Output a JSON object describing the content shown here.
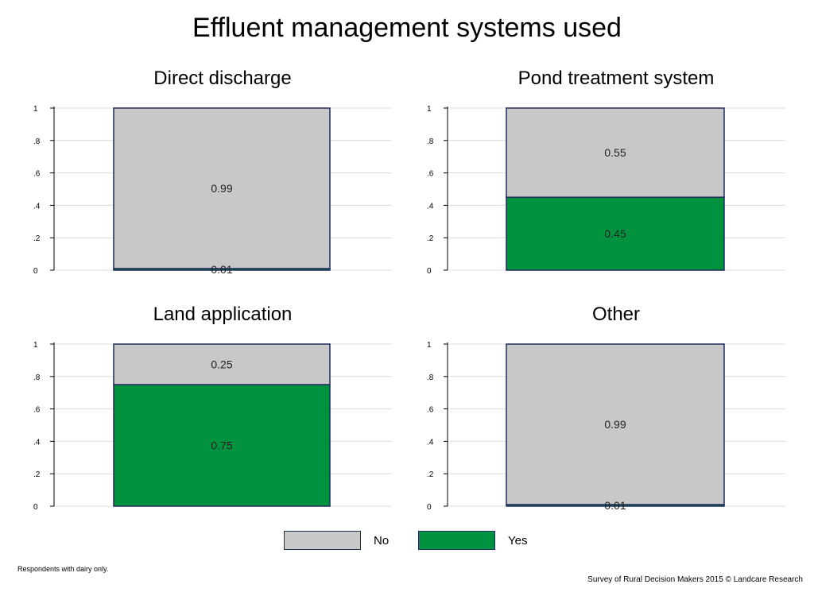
{
  "title": "Effluent management systems used",
  "chart_data": [
    {
      "type": "bar",
      "stacked": true,
      "title": "Direct discharge",
      "ylim": [
        0,
        1
      ],
      "yticks": [
        "0",
        ".2",
        ".4",
        ".6",
        ".8",
        "1"
      ],
      "series": [
        {
          "name": "Yes",
          "value": 0.01,
          "label": "0.01"
        },
        {
          "name": "No",
          "value": 0.99,
          "label": "0.99"
        }
      ],
      "grid": true
    },
    {
      "type": "bar",
      "stacked": true,
      "title": "Pond treatment system",
      "ylim": [
        0,
        1
      ],
      "yticks": [
        "0",
        ".2",
        ".4",
        ".6",
        ".8",
        "1"
      ],
      "series": [
        {
          "name": "Yes",
          "value": 0.45,
          "label": "0.45"
        },
        {
          "name": "No",
          "value": 0.55,
          "label": "0.55"
        }
      ],
      "grid": true
    },
    {
      "type": "bar",
      "stacked": true,
      "title": "Land application",
      "ylim": [
        0,
        1
      ],
      "yticks": [
        "0",
        ".2",
        ".4",
        ".6",
        ".8",
        "1"
      ],
      "series": [
        {
          "name": "Yes",
          "value": 0.75,
          "label": "0.75"
        },
        {
          "name": "No",
          "value": 0.25,
          "label": "0.25"
        }
      ],
      "grid": true
    },
    {
      "type": "bar",
      "stacked": true,
      "title": "Other",
      "ylim": [
        0,
        1
      ],
      "yticks": [
        "0",
        ".2",
        ".4",
        ".6",
        ".8",
        "1"
      ],
      "series": [
        {
          "name": "Yes",
          "value": 0.01,
          "label": "0.01"
        },
        {
          "name": "No",
          "value": 0.99,
          "label": "0.99"
        }
      ],
      "grid": true
    }
  ],
  "legend": {
    "placement": "bottom",
    "items": [
      {
        "label": "No",
        "color": "#c8c8c8"
      },
      {
        "label": "Yes",
        "color": "#00923f"
      }
    ]
  },
  "colors": {
    "no": "#c8c8c8",
    "yes": "#00923f",
    "outline": "#1f2d5a",
    "grid": "#dcdcdc"
  },
  "footnote": "Respondents with dairy only.",
  "source": "Survey of Rural Decision Makers 2015 © Landcare Research"
}
